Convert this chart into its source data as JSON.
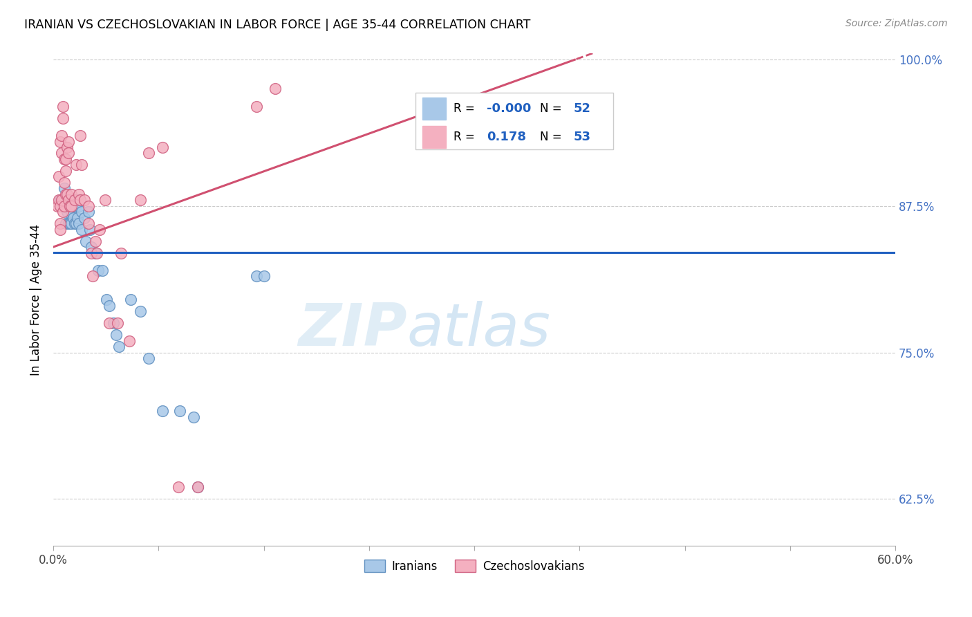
{
  "title": "IRANIAN VS CZECHOSLOVAKIAN IN LABOR FORCE | AGE 35-44 CORRELATION CHART",
  "source_text": "Source: ZipAtlas.com",
  "ylabel": "In Labor Force | Age 35-44",
  "xlim": [
    0.0,
    0.6
  ],
  "ylim": [
    0.585,
    1.005
  ],
  "xtick_positions": [
    0.0,
    0.075,
    0.15,
    0.225,
    0.3,
    0.375,
    0.45,
    0.525,
    0.6
  ],
  "xticklabels_ends": [
    "0.0%",
    "60.0%"
  ],
  "yticks": [
    0.625,
    0.75,
    0.875,
    1.0
  ],
  "yticklabels": [
    "62.5%",
    "75.0%",
    "87.5%",
    "100.0%"
  ],
  "blue_color": "#a8c8e8",
  "pink_color": "#f4b0c0",
  "blue_edge_color": "#6090c0",
  "pink_edge_color": "#d06080",
  "blue_line_color": "#2060c0",
  "pink_line_color": "#d05070",
  "r_value_color": "#2060c0",
  "grid_color": "#cccccc",
  "watermark_zip": "ZIP",
  "watermark_atlas": "atlas",
  "iranians_x": [
    0.005,
    0.005,
    0.006,
    0.007,
    0.008,
    0.008,
    0.009,
    0.009,
    0.01,
    0.01,
    0.011,
    0.011,
    0.012,
    0.012,
    0.013,
    0.013,
    0.013,
    0.014,
    0.014,
    0.015,
    0.015,
    0.016,
    0.016,
    0.017,
    0.017,
    0.018,
    0.018,
    0.019,
    0.02,
    0.02,
    0.022,
    0.023,
    0.025,
    0.026,
    0.027,
    0.03,
    0.032,
    0.035,
    0.038,
    0.04,
    0.043,
    0.045,
    0.047,
    0.055,
    0.062,
    0.068,
    0.078,
    0.09,
    0.1,
    0.103,
    0.145,
    0.15
  ],
  "iranians_y": [
    0.88,
    0.875,
    0.88,
    0.875,
    0.89,
    0.875,
    0.86,
    0.875,
    0.88,
    0.87,
    0.875,
    0.86,
    0.875,
    0.86,
    0.875,
    0.87,
    0.86,
    0.88,
    0.865,
    0.875,
    0.86,
    0.875,
    0.86,
    0.88,
    0.865,
    0.875,
    0.86,
    0.88,
    0.87,
    0.855,
    0.865,
    0.845,
    0.87,
    0.855,
    0.84,
    0.835,
    0.82,
    0.82,
    0.795,
    0.79,
    0.775,
    0.765,
    0.755,
    0.795,
    0.785,
    0.745,
    0.7,
    0.7,
    0.695,
    0.635,
    0.815,
    0.815
  ],
  "czechoslovakians_x": [
    0.003,
    0.004,
    0.004,
    0.005,
    0.005,
    0.005,
    0.005,
    0.006,
    0.006,
    0.006,
    0.007,
    0.007,
    0.007,
    0.008,
    0.008,
    0.008,
    0.009,
    0.009,
    0.009,
    0.01,
    0.01,
    0.011,
    0.011,
    0.011,
    0.012,
    0.013,
    0.013,
    0.015,
    0.016,
    0.018,
    0.019,
    0.019,
    0.02,
    0.022,
    0.025,
    0.025,
    0.027,
    0.028,
    0.03,
    0.031,
    0.033,
    0.037,
    0.04,
    0.046,
    0.048,
    0.054,
    0.062,
    0.068,
    0.078,
    0.089,
    0.103,
    0.145,
    0.158
  ],
  "czechoslovakians_y": [
    0.875,
    0.88,
    0.9,
    0.93,
    0.875,
    0.86,
    0.855,
    0.935,
    0.92,
    0.88,
    0.87,
    0.96,
    0.95,
    0.915,
    0.895,
    0.875,
    0.915,
    0.905,
    0.885,
    0.885,
    0.925,
    0.93,
    0.92,
    0.88,
    0.875,
    0.885,
    0.875,
    0.88,
    0.91,
    0.885,
    0.935,
    0.88,
    0.91,
    0.88,
    0.875,
    0.86,
    0.835,
    0.815,
    0.845,
    0.835,
    0.855,
    0.88,
    0.775,
    0.775,
    0.835,
    0.76,
    0.88,
    0.92,
    0.925,
    0.635,
    0.635,
    0.96,
    0.975
  ],
  "figsize": [
    14.06,
    8.92
  ],
  "dpi": 100
}
